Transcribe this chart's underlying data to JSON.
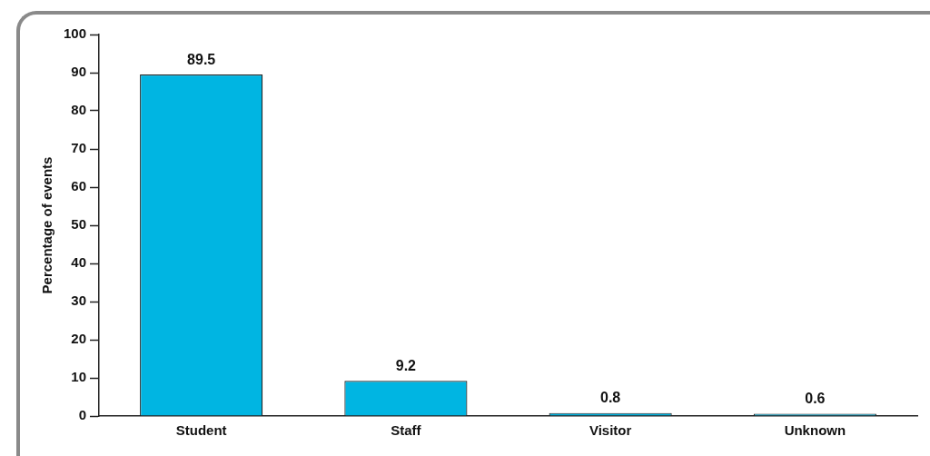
{
  "chart_data": {
    "type": "bar",
    "ylabel": "Percentage of events",
    "categories": [
      "Student",
      "Staff",
      "Visitor",
      "Unknown"
    ],
    "values": [
      89.5,
      9.2,
      0.8,
      0.6
    ],
    "color": "#00b5e2",
    "ylim": [
      0,
      100
    ],
    "yticks": [
      0,
      10,
      20,
      30,
      40,
      50,
      60,
      70,
      80,
      90,
      100
    ],
    "data_labels": true,
    "grid": false,
    "legend": false
  }
}
